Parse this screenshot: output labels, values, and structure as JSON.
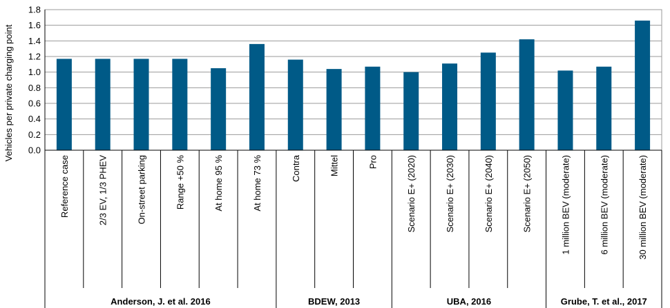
{
  "chart_data": {
    "type": "bar",
    "ylabel": "Vehicles per private charging point",
    "xlabel": "",
    "ylim": [
      0,
      1.8
    ],
    "yticks": [
      "0.0",
      "0.2",
      "0.4",
      "0.6",
      "0.8",
      "1.0",
      "1.2",
      "1.4",
      "1.6",
      "1.8"
    ],
    "grid": true,
    "bar_color": "#005a87",
    "categories": [
      "Reference case",
      "2/3 EV, 1/3 PHEV",
      "On-street parking",
      "Range +50 %",
      "At home 95 %",
      "At home 73 %",
      "Contra",
      "Mittel",
      "Pro",
      "Scenario E+ (2020)",
      "Scenario E+ (2030)",
      "Scenario E+ (2040)",
      "Scenario E+ (2050)",
      "1 million BEV (moderate)",
      "6 million BEV (moderate)",
      "30 million BEV (moderate)"
    ],
    "values": [
      1.17,
      1.17,
      1.17,
      1.17,
      1.05,
      1.36,
      1.16,
      1.04,
      1.07,
      1.0,
      1.11,
      1.25,
      1.42,
      1.02,
      1.07,
      1.66
    ],
    "groups": [
      {
        "label": "Anderson, J. et al. 2016",
        "start": 0,
        "end": 5
      },
      {
        "label": "BDEW, 2013",
        "start": 6,
        "end": 8
      },
      {
        "label": "UBA, 2016",
        "start": 9,
        "end": 12
      },
      {
        "label": "Grube, T. et al., 2017",
        "start": 13,
        "end": 15
      }
    ]
  }
}
